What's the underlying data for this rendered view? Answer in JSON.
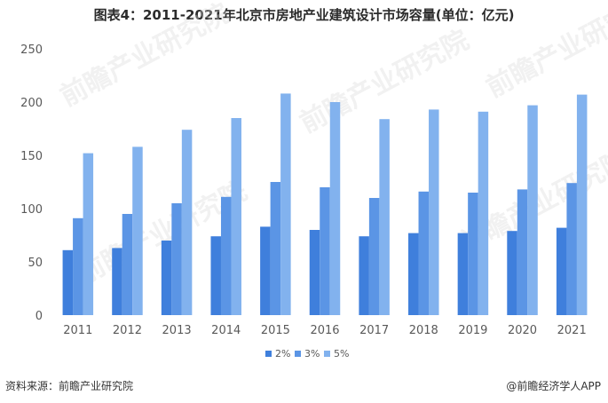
{
  "chart_data": {
    "type": "bar",
    "title": "图表4：2011-2021年北京市房地产业建筑设计市场容量(单位：亿元)",
    "categories": [
      "2011",
      "2012",
      "2013",
      "2014",
      "2015",
      "2016",
      "2017",
      "2018",
      "2019",
      "2020",
      "2021"
    ],
    "series": [
      {
        "name": "2%",
        "color": "#3f7fdc",
        "values": [
          61,
          63,
          70,
          74,
          83,
          80,
          74,
          77,
          77,
          79,
          82
        ]
      },
      {
        "name": "3%",
        "color": "#5b95e5",
        "values": [
          91,
          95,
          105,
          111,
          125,
          120,
          110,
          116,
          115,
          118,
          124
        ]
      },
      {
        "name": "5%",
        "color": "#82b2ee",
        "values": [
          152,
          158,
          174,
          185,
          208,
          200,
          184,
          193,
          191,
          197,
          207
        ]
      }
    ],
    "ylim": [
      0,
      250
    ],
    "yticks": [
      0,
      50,
      100,
      150,
      200,
      250
    ],
    "xlabel": "",
    "ylabel": "",
    "legend_position": "bottom"
  },
  "watermark": "前瞻产业研究院",
  "footer": {
    "source": "资料来源：前瞻产业研究院",
    "brand": "@前瞻经济学人APP"
  }
}
